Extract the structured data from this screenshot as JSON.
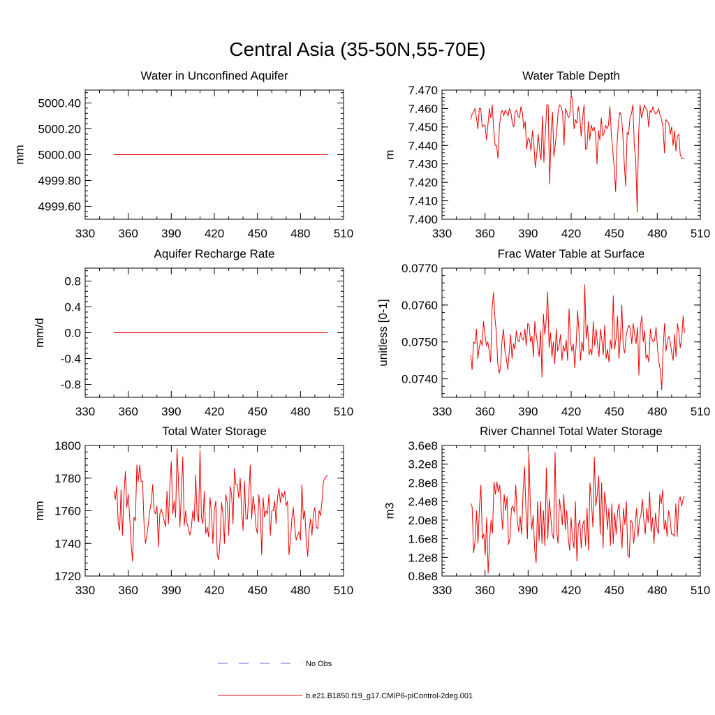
{
  "figure": {
    "title": "Central Asia (35-50N,55-70E)",
    "legend": {
      "position": "bottom-center",
      "entries": [
        {
          "label": "No Obs",
          "color": "#6a6ad8",
          "style": "dashed"
        },
        {
          "label": "b.e21.B1850.f19_g17.CMIP6-piControl-2deg.001",
          "color": "#ee0000",
          "style": "solid"
        }
      ]
    }
  },
  "chart_data": [
    {
      "type": "line",
      "title": "Water in Unconfined Aquifer",
      "ylabel": "mm",
      "xlim": [
        330,
        510
      ],
      "ylim": [
        4999.5,
        5000.5
      ],
      "xticks": [
        330,
        360,
        390,
        420,
        450,
        480,
        510
      ],
      "yticks": [
        4999.6,
        4999.8,
        5000.0,
        5000.2,
        5000.4
      ],
      "ytick_labels": [
        "4999.60",
        "4999.80",
        "5000.00",
        "5000.20",
        "5000.40"
      ],
      "series": [
        {
          "color": "#ee0000",
          "x_start": 350,
          "x_end": 499,
          "values": [
            5000,
            5000
          ]
        }
      ]
    },
    {
      "type": "line",
      "title": "Water Table Depth",
      "ylabel": "m",
      "xlim": [
        330,
        510
      ],
      "ylim": [
        7.4,
        7.47
      ],
      "xticks": [
        330,
        360,
        390,
        420,
        450,
        480,
        510
      ],
      "yticks": [
        7.4,
        7.41,
        7.42,
        7.43,
        7.44,
        7.45,
        7.46,
        7.47
      ],
      "ytick_labels": [
        "7.400",
        "7.410",
        "7.420",
        "7.430",
        "7.440",
        "7.450",
        "7.460",
        "7.470"
      ],
      "series": [
        {
          "color": "#ee0000",
          "x_start": 350,
          "x_end": 499,
          "values": [
            7.454,
            7.457,
            7.458,
            7.46,
            7.455,
            7.449,
            7.46,
            7.46,
            7.45,
            7.451,
            7.451,
            7.443,
            7.451,
            7.46,
            7.455,
            7.462,
            7.449,
            7.44,
            7.44,
            7.433,
            7.45,
            7.457,
            7.459,
            7.456,
            7.459,
            7.458,
            7.456,
            7.46,
            7.458,
            7.452,
            7.45,
            7.458,
            7.459,
            7.456,
            7.455,
            7.461,
            7.458,
            7.449,
            7.453,
            7.438,
            7.444,
            7.443,
            7.437,
            7.448,
            7.441,
            7.428,
            7.435,
            7.446,
            7.438,
            7.432,
            7.456,
            7.431,
            7.446,
            7.462,
            7.462,
            7.419,
            7.447,
            7.458,
            7.434,
            7.441,
            7.448,
            7.459,
            7.462,
            7.461,
            7.458,
            7.44,
            7.46,
            7.458,
            7.455,
            7.456,
            7.467,
            7.465,
            7.449,
            7.454,
            7.452,
            7.461,
            7.456,
            7.445,
            7.455,
            7.462,
            7.438,
            7.438,
            7.453,
            7.443,
            7.451,
            7.448,
            7.45,
            7.446,
            7.43,
            7.448,
            7.443,
            7.455,
            7.445,
            7.447,
            7.451,
            7.449,
            7.451,
            7.461,
            7.446,
            7.437,
            7.428,
            7.415,
            7.441,
            7.453,
            7.458,
            7.456,
            7.446,
            7.43,
            7.418,
            7.447,
            7.446,
            7.455,
            7.457,
            7.462,
            7.44,
            7.432,
            7.404,
            7.446,
            7.462,
            7.455,
            7.458,
            7.462,
            7.46,
            7.459,
            7.45,
            7.459,
            7.458,
            7.461,
            7.458,
            7.457,
            7.458,
            7.46,
            7.456,
            7.454,
            7.45,
            7.436,
            7.454,
            7.453,
            7.452,
            7.446,
            7.45,
            7.44,
            7.448,
            7.437,
            7.445,
            7.446,
            7.435,
            7.433,
            7.433,
            7.433
          ]
        }
      ]
    },
    {
      "type": "line",
      "title": "Aquifer Recharge Rate",
      "ylabel": "mm/d",
      "xlim": [
        330,
        510
      ],
      "ylim": [
        -1.0,
        1.0
      ],
      "xticks": [
        330,
        360,
        390,
        420,
        450,
        480,
        510
      ],
      "yticks": [
        -0.8,
        -0.4,
        0.0,
        0.4,
        0.8
      ],
      "ytick_labels": [
        "-0.8",
        "-0.4",
        "0.0",
        "0.4",
        "0.8"
      ],
      "series": [
        {
          "color": "#ee0000",
          "x_start": 350,
          "x_end": 499,
          "values": [
            0,
            0
          ]
        }
      ]
    },
    {
      "type": "line",
      "title": "Frac Water Table at Surface",
      "ylabel": "unitless [0-1]",
      "xlim": [
        330,
        510
      ],
      "ylim": [
        0.0735,
        0.077
      ],
      "xticks": [
        330,
        360,
        390,
        420,
        450,
        480,
        510
      ],
      "yticks": [
        0.074,
        0.075,
        0.076,
        0.077
      ],
      "ytick_labels": [
        "0.0740",
        "0.0750",
        "0.0760",
        "0.0770"
      ],
      "series": [
        {
          "color": "#ee0000",
          "x_start": 350,
          "x_end": 499,
          "values": [
            0.07465,
            0.07425,
            0.075,
            0.07495,
            0.07535,
            0.07455,
            0.07485,
            0.07505,
            0.0749,
            0.07555,
            0.0752,
            0.0749,
            0.075,
            0.07475,
            0.07445,
            0.0759,
            0.07634,
            0.07565,
            0.07525,
            0.0744,
            0.07415,
            0.07435,
            0.07505,
            0.07535,
            0.07475,
            0.07455,
            0.07425,
            0.0747,
            0.0752,
            0.07455,
            0.07495,
            0.0748,
            0.0753,
            0.07505,
            0.075,
            0.07525,
            0.0751,
            0.07505,
            0.07535,
            0.0749,
            0.0755,
            0.07545,
            0.075,
            0.07515,
            0.0746,
            0.07555,
            0.0752,
            0.0749,
            0.0746,
            0.0753,
            0.07405,
            0.07575,
            0.0752,
            0.0756,
            0.07635,
            0.07485,
            0.07525,
            0.0746,
            0.075,
            0.0744,
            0.07535,
            0.07475,
            0.0749,
            0.0752,
            0.0745,
            0.0749,
            0.07475,
            0.07505,
            0.0745,
            0.0759,
            0.075,
            0.07475,
            0.07495,
            0.0743,
            0.07495,
            0.07585,
            0.07525,
            0.0745,
            0.075,
            0.07475,
            0.07655,
            0.0751,
            0.07545,
            0.07465,
            0.0748,
            0.07465,
            0.07555,
            0.0749,
            0.07535,
            0.0749,
            0.0746,
            0.07535,
            0.07505,
            0.07465,
            0.07545,
            0.07455,
            0.0748,
            0.07445,
            0.07505,
            0.0748,
            0.07625,
            0.0748,
            0.0751,
            0.0757,
            0.07455,
            0.0751,
            0.076,
            0.07485,
            0.0747,
            0.07515,
            0.07535,
            0.07545,
            0.07535,
            0.07495,
            0.0755,
            0.0752,
            0.07495,
            0.0754,
            0.0741,
            0.0754,
            0.0757,
            0.075,
            0.0753,
            0.07455,
            0.07465,
            0.07445,
            0.07535,
            0.0751,
            0.075,
            0.07505,
            0.0754,
            0.07485,
            0.07445,
            0.07425,
            0.0737,
            0.07485,
            0.0755,
            0.07475,
            0.07505,
            0.07515,
            0.075,
            0.0747,
            0.0745,
            0.0752,
            0.0746,
            0.0755,
            0.07525,
            0.07485,
            0.0751,
            0.0757,
            0.07525
          ]
        }
      ]
    },
    {
      "type": "line",
      "title": "Total Water Storage",
      "ylabel": "mm",
      "xlim": [
        330,
        510
      ],
      "ylim": [
        1720,
        1800
      ],
      "xticks": [
        330,
        360,
        390,
        420,
        450,
        480,
        510
      ],
      "yticks": [
        1720,
        1740,
        1760,
        1780,
        1800
      ],
      "ytick_labels": [
        "1720",
        "1740",
        "1760",
        "1780",
        "1800"
      ],
      "series": [
        {
          "color": "#ee0000",
          "x_start": 350,
          "x_end": 499,
          "values": [
            1772,
            1767,
            1775,
            1752,
            1748,
            1773,
            1745,
            1770,
            1784,
            1762,
            1770,
            1756,
            1740,
            1729,
            1756,
            1754,
            1788,
            1778,
            1788,
            1778,
            1778,
            1752,
            1740,
            1745,
            1752,
            1760,
            1765,
            1776,
            1760,
            1758,
            1763,
            1738,
            1758,
            1761,
            1758,
            1754,
            1750,
            1772,
            1752,
            1776,
            1790,
            1758,
            1766,
            1756,
            1798,
            1778,
            1750,
            1770,
            1793,
            1751,
            1760,
            1752,
            1749,
            1745,
            1750,
            1760,
            1754,
            1782,
            1757,
            1753,
            1797,
            1756,
            1752,
            1772,
            1746,
            1750,
            1744,
            1768,
            1758,
            1740,
            1760,
            1766,
            1733,
            1730,
            1742,
            1765,
            1758,
            1740,
            1770,
            1765,
            1745,
            1775,
            1770,
            1752,
            1786,
            1776,
            1776,
            1768,
            1780,
            1760,
            1748,
            1778,
            1755,
            1755,
            1770,
            1788,
            1755,
            1769,
            1762,
            1750,
            1746,
            1770,
            1760,
            1733,
            1768,
            1756,
            1760,
            1758,
            1770,
            1745,
            1760,
            1760,
            1766,
            1752,
            1768,
            1774,
            1765,
            1771,
            1768,
            1772,
            1763,
            1766,
            1733,
            1742,
            1755,
            1762,
            1750,
            1742,
            1745,
            1747,
            1742,
            1776,
            1755,
            1760,
            1742,
            1732,
            1748,
            1755,
            1745,
            1758,
            1762,
            1750,
            1749,
            1760,
            1757,
            1766,
            1778,
            1780,
            1781,
            1782
          ]
        }
      ]
    },
    {
      "type": "line",
      "title": "River Channel Total Water Storage",
      "ylabel": "m3",
      "xlim": [
        330,
        510
      ],
      "ylim": [
        80000000.0,
        360000000.0
      ],
      "xticks": [
        330,
        360,
        390,
        420,
        450,
        480,
        510
      ],
      "yticks": [
        80000000.0,
        120000000.0,
        160000000.0,
        200000000.0,
        240000000.0,
        280000000.0,
        320000000.0,
        360000000.0
      ],
      "ytick_labels": [
        "0.8e8",
        "1.2e8",
        "1.6e8",
        "2.0e8",
        "2.4e8",
        "2.8e8",
        "3.2e8",
        "3.6e8"
      ],
      "series": [
        {
          "color": "#ee0000",
          "x_start": 350,
          "x_end": 499,
          "values": [
            236000000.0,
            228000000.0,
            130000000.0,
            155000000.0,
            220000000.0,
            150000000.0,
            225000000.0,
            275000000.0,
            160000000.0,
            170000000.0,
            125000000.0,
            205000000.0,
            86000000.0,
            155000000.0,
            200000000.0,
            172000000.0,
            282000000.0,
            255000000.0,
            282000000.0,
            260000000.0,
            275000000.0,
            220000000.0,
            180000000.0,
            255000000.0,
            220000000.0,
            250000000.0,
            148000000.0,
            160000000.0,
            225000000.0,
            230000000.0,
            216000000.0,
            275000000.0,
            200000000.0,
            175000000.0,
            208000000.0,
            170000000.0,
            260000000.0,
            315000000.0,
            220000000.0,
            160000000.0,
            345000000.0,
            230000000.0,
            180000000.0,
            210000000.0,
            135000000.0,
            108000000.0,
            240000000.0,
            155000000.0,
            240000000.0,
            150000000.0,
            220000000.0,
            145000000.0,
            312000000.0,
            160000000.0,
            245000000.0,
            210000000.0,
            170000000.0,
            160000000.0,
            345000000.0,
            180000000.0,
            150000000.0,
            245000000.0,
            220000000.0,
            190000000.0,
            255000000.0,
            180000000.0,
            220000000.0,
            165000000.0,
            135000000.0,
            205000000.0,
            160000000.0,
            140000000.0,
            240000000.0,
            112000000.0,
            190000000.0,
            200000000.0,
            140000000.0,
            190000000.0,
            200000000.0,
            145000000.0,
            225000000.0,
            135000000.0,
            280000000.0,
            240000000.0,
            185000000.0,
            335000000.0,
            230000000.0,
            255000000.0,
            295000000.0,
            170000000.0,
            280000000.0,
            140000000.0,
            260000000.0,
            235000000.0,
            180000000.0,
            225000000.0,
            145000000.0,
            235000000.0,
            150000000.0,
            215000000.0,
            170000000.0,
            220000000.0,
            235000000.0,
            180000000.0,
            140000000.0,
            225000000.0,
            190000000.0,
            240000000.0,
            125000000.0,
            120000000.0,
            200000000.0,
            195000000.0,
            150000000.0,
            185000000.0,
            225000000.0,
            165000000.0,
            200000000.0,
            210000000.0,
            245000000.0,
            200000000.0,
            170000000.0,
            225000000.0,
            195000000.0,
            260000000.0,
            175000000.0,
            205000000.0,
            150000000.0,
            215000000.0,
            185000000.0,
            170000000.0,
            255000000.0,
            235000000.0,
            265000000.0,
            180000000.0,
            200000000.0,
            165000000.0,
            220000000.0,
            205000000.0,
            170000000.0,
            170000000.0,
            165000000.0,
            235000000.0,
            165000000.0,
            240000000.0,
            250000000.0,
            230000000.0,
            245000000.0,
            252000000.0
          ]
        }
      ]
    }
  ]
}
